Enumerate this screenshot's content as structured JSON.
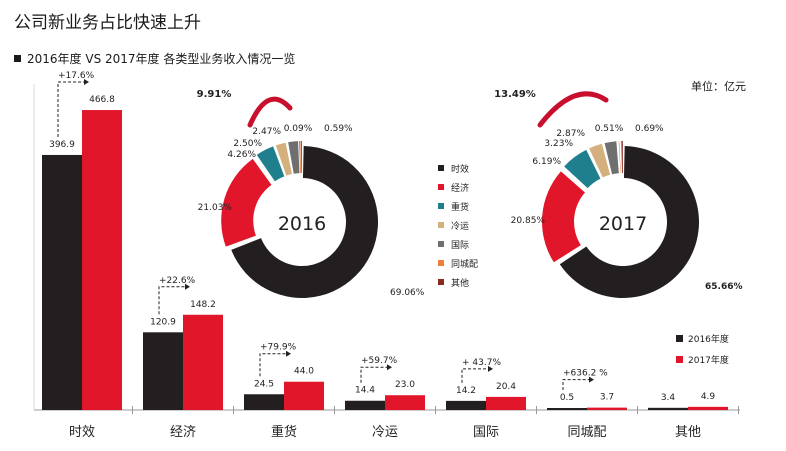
{
  "title": "公司新业务占比快速上升",
  "subtitle": "2016年度 VS 2017年度 各类型业务收入情况一览",
  "unit": "单位：亿元",
  "colors": {
    "y2016": "#231f20",
    "y2017": "#e2162a",
    "donut": [
      "#231f20",
      "#e2162a",
      "#1f7f8c",
      "#d3b07d",
      "#6f6f6f",
      "#f07f3c",
      "#8b2a22"
    ]
  },
  "chart_data": [
    {
      "type": "bar",
      "categories": [
        "时效",
        "经济",
        "重货",
        "冷运",
        "国际",
        "同城配",
        "其他"
      ],
      "series": [
        {
          "name": "2016年度",
          "values": [
            396.9,
            120.9,
            24.5,
            14.4,
            14.2,
            0.5,
            3.4
          ]
        },
        {
          "name": "2017年度",
          "values": [
            466.8,
            148.2,
            44.0,
            23.0,
            20.4,
            3.7,
            4.9
          ]
        }
      ],
      "value_labels": {
        "y2016": [
          "396.9",
          "120.9",
          "24.5",
          "14.4",
          "14.2",
          "0.5",
          "3.4"
        ],
        "y2017": [
          "466.8",
          "148.2",
          "44.0",
          "23.0",
          "20.4",
          "3.7",
          "4.9"
        ]
      },
      "growth_labels": [
        "+17.6%",
        "+22.6%",
        "+79.9%",
        "+59.7%",
        "+ 43.7%",
        "+636.2 %",
        ""
      ],
      "ylim": [
        0,
        480
      ],
      "legend": [
        "2016年度",
        "2017年度"
      ],
      "legend_position": "bottom-right"
    },
    {
      "type": "pie",
      "center_label": "2016",
      "categories": [
        "时效",
        "经济",
        "重货",
        "冷运",
        "国际",
        "同城配",
        "其他"
      ],
      "values": [
        69.06,
        21.03,
        4.26,
        2.5,
        2.47,
        0.09,
        0.59
      ],
      "labels": [
        "69.06%",
        "21.03%",
        "4.26%",
        "2.50%",
        "2.47%",
        "0.09%",
        "0.59%"
      ],
      "highlight": "9.91%"
    },
    {
      "type": "pie",
      "center_label": "2017",
      "categories": [
        "时效",
        "经济",
        "重货",
        "冷运",
        "国际",
        "同城配",
        "其他"
      ],
      "values": [
        65.66,
        20.85,
        6.19,
        3.23,
        2.87,
        0.51,
        0.69
      ],
      "labels": [
        "65.66%",
        "20.85%",
        "6.19%",
        "3.23%",
        "2.87%",
        "0.51%",
        "0.69%"
      ],
      "highlight": "13.49%"
    }
  ],
  "donut_legend": [
    "时效",
    "经济",
    "重货",
    "冷运",
    "国际",
    "同城配",
    "其他"
  ]
}
